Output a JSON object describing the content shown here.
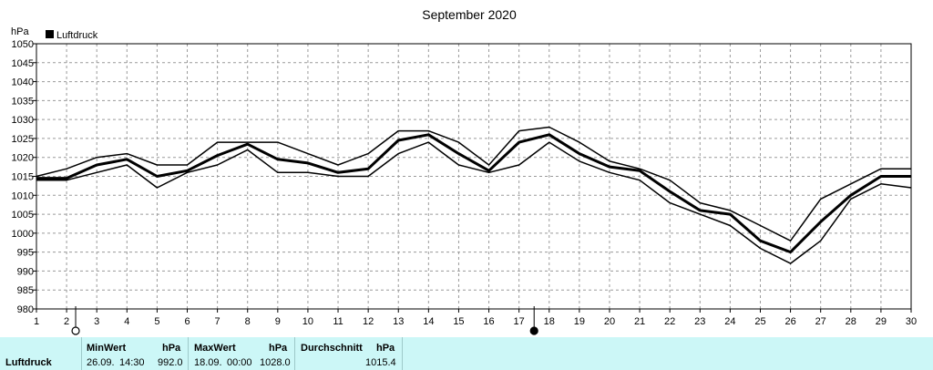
{
  "chart_data": {
    "type": "line",
    "title": "September 2020",
    "ylabel": "hPa",
    "xlabel": "",
    "legend": {
      "label": "Luftdruck",
      "placement": "top-left"
    },
    "grid": true,
    "xlim": [
      1,
      30
    ],
    "ylim": [
      980,
      1050
    ],
    "x_ticks": [
      1,
      2,
      3,
      4,
      5,
      6,
      7,
      8,
      9,
      10,
      11,
      12,
      13,
      14,
      15,
      16,
      17,
      18,
      19,
      20,
      21,
      22,
      23,
      24,
      25,
      26,
      27,
      28,
      29,
      30
    ],
    "y_ticks": [
      980,
      985,
      990,
      995,
      1000,
      1005,
      1010,
      1015,
      1020,
      1025,
      1030,
      1035,
      1040,
      1045,
      1050
    ],
    "x": [
      1,
      2,
      3,
      4,
      5,
      6,
      7,
      8,
      9,
      10,
      11,
      12,
      13,
      14,
      15,
      16,
      17,
      18,
      19,
      20,
      21,
      22,
      23,
      24,
      25,
      26,
      27,
      28,
      29,
      30
    ],
    "series": [
      {
        "name": "Luftdruck",
        "role": "max",
        "values": [
          1015,
          1017,
          1020,
          1021,
          1018,
          1018,
          1024,
          1024,
          1024,
          1021,
          1018,
          1021,
          1027,
          1027,
          1024,
          1018,
          1027,
          1028,
          1024,
          1019,
          1017,
          1014,
          1008,
          1006,
          1002,
          998,
          1009,
          1013,
          1017,
          1017
        ]
      },
      {
        "name": "Luftdruck",
        "role": "mean",
        "values": [
          1014.5,
          1014.5,
          1018,
          1019.5,
          1015,
          1016.5,
          1020.5,
          1023.5,
          1019.5,
          1018.5,
          1016,
          1017,
          1024.5,
          1026,
          1021,
          1016.5,
          1024,
          1026,
          1021,
          1017.5,
          1016.5,
          1011,
          1006,
          1005,
          998,
          995,
          1003,
          1010,
          1015,
          1015
        ]
      },
      {
        "name": "Luftdruck",
        "role": "min",
        "values": [
          1014,
          1014,
          1016,
          1018,
          1012,
          1016,
          1018,
          1022,
          1016,
          1016,
          1015,
          1015,
          1021,
          1024,
          1018,
          1016,
          1018,
          1024,
          1019,
          1016,
          1014,
          1008,
          1005,
          1002,
          996,
          992,
          998,
          1009,
          1013,
          1012
        ]
      }
    ],
    "markers": [
      {
        "x": 2.3,
        "symbol": "open-circle"
      },
      {
        "x": 17.5,
        "symbol": "filled-circle"
      }
    ]
  },
  "stats": {
    "name": "Luftdruck",
    "min": {
      "label": "MinWert",
      "unit": "hPa",
      "date": "26.09.",
      "time": "14:30",
      "value": "992.0"
    },
    "max": {
      "label": "MaxWert",
      "unit": "hPa",
      "date": "18.09.",
      "time": "00:00",
      "value": "1028.0"
    },
    "avg": {
      "label": "Durchschnitt",
      "unit": "hPa",
      "value": "1015.4"
    }
  }
}
